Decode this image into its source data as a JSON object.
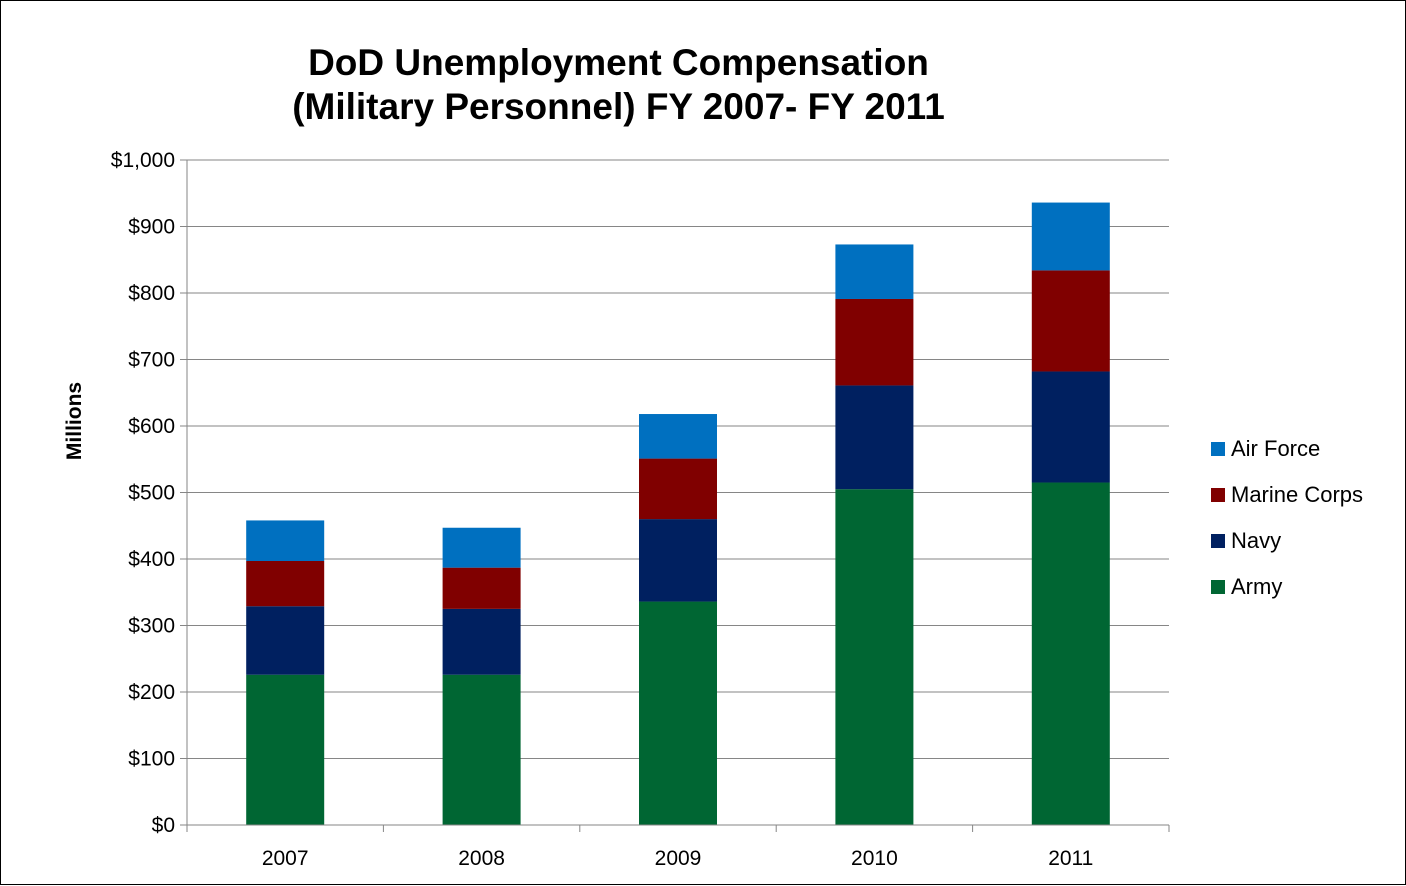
{
  "chart_data": {
    "type": "bar",
    "stacked": true,
    "title_lines": [
      "DoD Unemployment Compensation",
      "(Military Personnel) FY 2007- FY 2011"
    ],
    "ylabel": "Millions",
    "xlabel": "",
    "categories": [
      "2007",
      "2008",
      "2009",
      "2010",
      "2011"
    ],
    "ylim": [
      0,
      1000
    ],
    "y_ticks": [
      "$0",
      "$100",
      "$200",
      "$300",
      "$400",
      "$500",
      "$600",
      "$700",
      "$800",
      "$900",
      "$1,000"
    ],
    "grid": true,
    "legend_position": "right",
    "series": [
      {
        "name": "Army",
        "color": "#006633",
        "values": [
          226,
          226,
          336,
          505,
          515
        ]
      },
      {
        "name": "Navy",
        "color": "#002060",
        "values": [
          103,
          99,
          124,
          156,
          167
        ]
      },
      {
        "name": "Marine Corps",
        "color": "#800000",
        "values": [
          68,
          62,
          91,
          130,
          152
        ]
      },
      {
        "name": "Air Force",
        "color": "#0070C0",
        "values": [
          61,
          60,
          67,
          82,
          102
        ]
      }
    ]
  }
}
